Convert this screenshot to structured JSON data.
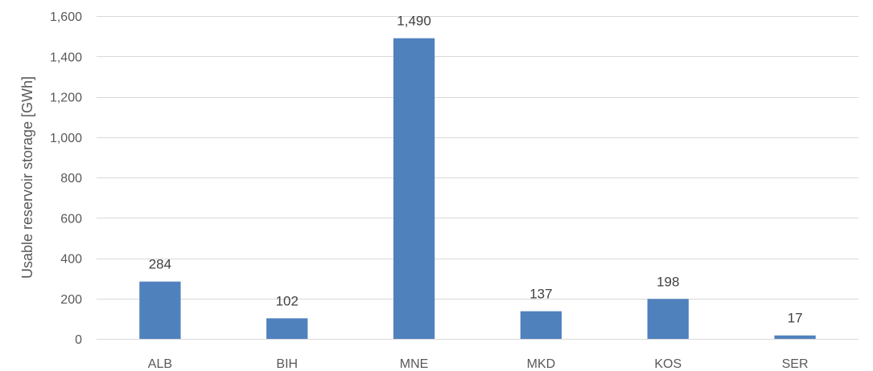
{
  "chart_data": {
    "type": "bar",
    "categories": [
      "ALB",
      "BIH",
      "MNE",
      "MKD",
      "KOS",
      "SER"
    ],
    "values": [
      284,
      102,
      1490,
      137,
      198,
      17
    ],
    "data_labels": [
      "284",
      "102",
      "1,490",
      "137",
      "198",
      "17"
    ],
    "title": "",
    "xlabel": "",
    "ylabel": "Usable reservoir storage [GWh]",
    "ylim": [
      0,
      1600
    ],
    "yticks": [
      0,
      200,
      400,
      600,
      800,
      1000,
      1200,
      1400,
      1600
    ],
    "ytick_labels": [
      "0",
      "200",
      "400",
      "600",
      "800",
      "1,000",
      "1,200",
      "1,400",
      "1,600"
    ],
    "grid": true,
    "legend": "none",
    "colors": {
      "bar": "#4f81bd",
      "grid": "#d9d9d9",
      "text": "#595959"
    }
  }
}
